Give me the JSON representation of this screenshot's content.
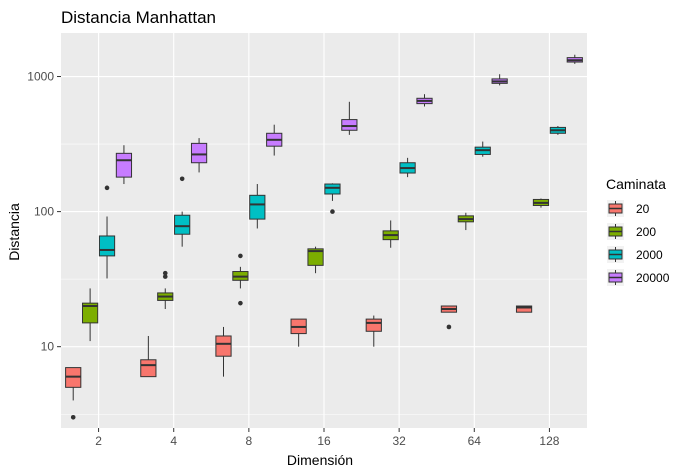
{
  "chart_data": {
    "type": "boxplot",
    "title": "Distancia Manhattan",
    "xlabel": "Dimensión",
    "ylabel": "Distancia",
    "y_scale": "log10",
    "ylim": [
      2.5,
      2100
    ],
    "y_ticks": [
      10,
      100,
      1000
    ],
    "y_tick_labels": [
      "10",
      "100",
      "1000"
    ],
    "categories": [
      "2",
      "4",
      "8",
      "16",
      "32",
      "64",
      "128"
    ],
    "grid": true,
    "legend": {
      "title": "Caminata",
      "position": "right"
    },
    "series": [
      {
        "name": "20",
        "color": "#F8766D",
        "boxes": [
          {
            "min": 4.0,
            "q1": 5.0,
            "median": 6.0,
            "q3": 7.0,
            "max": 7.0,
            "outliers": [
              3.0
            ]
          },
          {
            "min": 6.0,
            "q1": 6.0,
            "median": 7.3,
            "q3": 8.0,
            "max": 12.0,
            "outliers": []
          },
          {
            "min": 6.0,
            "q1": 8.5,
            "median": 10.5,
            "q3": 12.0,
            "max": 14.0,
            "outliers": []
          },
          {
            "min": 10.0,
            "q1": 12.5,
            "median": 14.0,
            "q3": 16.0,
            "max": 16.0,
            "outliers": []
          },
          {
            "min": 10.0,
            "q1": 13.0,
            "median": 15.0,
            "q3": 16.0,
            "max": 17.0,
            "outliers": []
          },
          {
            "min": 18.0,
            "q1": 18.0,
            "median": 19.0,
            "q3": 20.0,
            "max": 20.0,
            "outliers": [
              14.0
            ]
          },
          {
            "min": 18.0,
            "q1": 18.0,
            "median": 19.5,
            "q3": 20.0,
            "max": 20.0,
            "outliers": []
          }
        ]
      },
      {
        "name": "200",
        "color": "#7CAE00",
        "boxes": [
          {
            "min": 11.0,
            "q1": 15.0,
            "median": 20.0,
            "q3": 21.0,
            "max": 27.0,
            "outliers": []
          },
          {
            "min": 19.0,
            "q1": 22.0,
            "median": 23.5,
            "q3": 25.0,
            "max": 27.0,
            "outliers": [
              33.0,
              35.0
            ]
          },
          {
            "min": 27.0,
            "q1": 31.0,
            "median": 33.0,
            "q3": 36.0,
            "max": 39.0,
            "outliers": [
              21.0,
              47.0
            ]
          },
          {
            "min": 35.0,
            "q1": 40.0,
            "median": 51.0,
            "q3": 53.0,
            "max": 55.0,
            "outliers": []
          },
          {
            "min": 54.0,
            "q1": 62.0,
            "median": 67.0,
            "q3": 72.0,
            "max": 86.0,
            "outliers": []
          },
          {
            "min": 73.0,
            "q1": 84.0,
            "median": 88.0,
            "q3": 93.0,
            "max": 98.0,
            "outliers": []
          },
          {
            "min": 107.0,
            "q1": 111.0,
            "median": 116.0,
            "q3": 123.0,
            "max": 125.0,
            "outliers": []
          }
        ]
      },
      {
        "name": "2000",
        "color": "#00BFC4",
        "boxes": [
          {
            "min": 32.0,
            "q1": 47.0,
            "median": 52.0,
            "q3": 66.0,
            "max": 92.0,
            "outliers": [
              150.0
            ]
          },
          {
            "min": 55.0,
            "q1": 68.0,
            "median": 78.0,
            "q3": 94.0,
            "max": 100.0,
            "outliers": [
              175.0
            ]
          },
          {
            "min": 75.0,
            "q1": 88.0,
            "median": 113.0,
            "q3": 132.0,
            "max": 160.0,
            "outliers": []
          },
          {
            "min": 120.0,
            "q1": 135.0,
            "median": 150.0,
            "q3": 160.0,
            "max": 162.0,
            "outliers": [
              100.0
            ]
          },
          {
            "min": 180.0,
            "q1": 193.0,
            "median": 210.0,
            "q3": 230.0,
            "max": 250.0,
            "outliers": []
          },
          {
            "min": 255.0,
            "q1": 265.0,
            "median": 285.0,
            "q3": 300.0,
            "max": 330.0,
            "outliers": []
          },
          {
            "min": 370.0,
            "q1": 380.0,
            "median": 400.0,
            "q3": 420.0,
            "max": 430.0,
            "outliers": []
          }
        ]
      },
      {
        "name": "20000",
        "color": "#C77CFF",
        "boxes": [
          {
            "min": 160.0,
            "q1": 180.0,
            "median": 240.0,
            "q3": 270.0,
            "max": 310.0,
            "outliers": []
          },
          {
            "min": 195.0,
            "q1": 230.0,
            "median": 265.0,
            "q3": 320.0,
            "max": 350.0,
            "outliers": []
          },
          {
            "min": 260.0,
            "q1": 305.0,
            "median": 340.0,
            "q3": 380.0,
            "max": 440.0,
            "outliers": []
          },
          {
            "min": 370.0,
            "q1": 400.0,
            "median": 430.0,
            "q3": 480.0,
            "max": 650.0,
            "outliers": []
          },
          {
            "min": 600.0,
            "q1": 630.0,
            "median": 660.0,
            "q3": 690.0,
            "max": 740.0,
            "outliers": []
          },
          {
            "min": 860.0,
            "q1": 890.0,
            "median": 920.0,
            "q3": 960.0,
            "max": 1040.0,
            "outliers": []
          },
          {
            "min": 1240.0,
            "q1": 1280.0,
            "median": 1320.0,
            "q3": 1380.0,
            "max": 1450.0,
            "outliers": []
          }
        ]
      }
    ]
  }
}
